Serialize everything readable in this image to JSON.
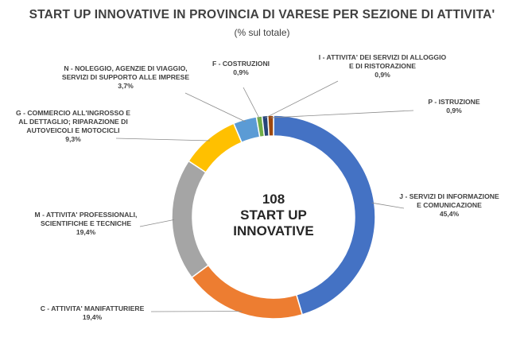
{
  "chart_data": {
    "type": "pie",
    "title": "START UP INNOVATIVE IN PROVINCIA DI VARESE PER SEZIONE DI ATTIVITA'",
    "subtitle": "(% sul totale)",
    "center_text": [
      "108",
      "START UP",
      "INNOVATIVE"
    ],
    "unit": "%",
    "slices": [
      {
        "label_lines": [
          "J - SERVIZI DI INFORMAZIONE",
          "E COMUNICAZIONE"
        ],
        "value": 45.4,
        "value_text": "45,4%",
        "color": "#4472C4"
      },
      {
        "label_lines": [
          "C - ATTIVITA' MANIFATTURIERE"
        ],
        "value": 19.4,
        "value_text": "19,4%",
        "color": "#ED7D31"
      },
      {
        "label_lines": [
          "M - ATTIVITA' PROFESSIONALI,",
          "SCIENTIFICHE E TECNICHE"
        ],
        "value": 19.4,
        "value_text": "19,4%",
        "color": "#A5A5A5"
      },
      {
        "label_lines": [
          "G - COMMERCIO ALL'INGROSSO E",
          "AL DETTAGLIO; RIPARAZIONE DI",
          "AUTOVEICOLI E MOTOCICLI"
        ],
        "value": 9.3,
        "value_text": "9,3%",
        "color": "#FFC000"
      },
      {
        "label_lines": [
          "N - NOLEGGIO, AGENZIE DI VIAGGIO,",
          "SERVIZI DI SUPPORTO ALLE IMPRESE"
        ],
        "value": 3.7,
        "value_text": "3,7%",
        "color": "#5B9BD5"
      },
      {
        "label_lines": [
          "F - COSTRUZIONI"
        ],
        "value": 0.9,
        "value_text": "0,9%",
        "color": "#70AD47"
      },
      {
        "label_lines": [
          "I - ATTIVITA' DEI SERVIZI DI ALLOGGIO",
          "E DI RISTORAZIONE"
        ],
        "value": 0.9,
        "value_text": "0,9%",
        "color": "#264478"
      },
      {
        "label_lines": [
          "P - ISTRUZIONE"
        ],
        "value": 0.9,
        "value_text": "0,9%",
        "color": "#9E480E"
      }
    ]
  }
}
